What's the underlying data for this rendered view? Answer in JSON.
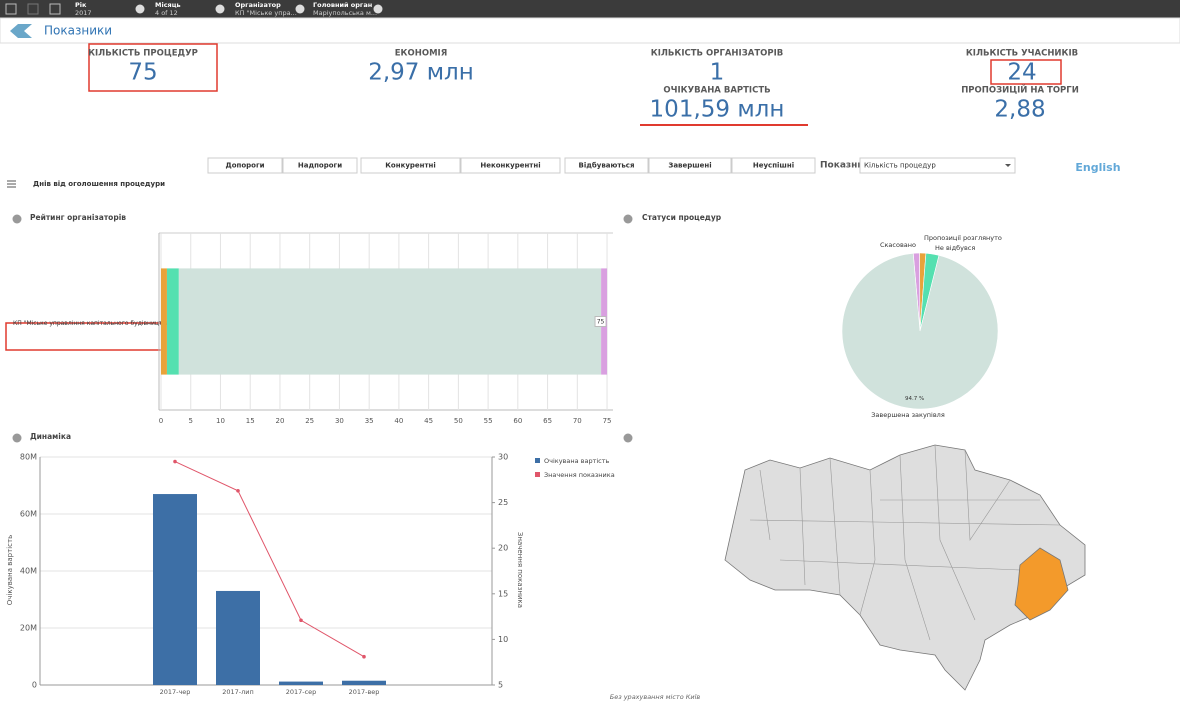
{
  "selections": [
    {
      "field": "Рік",
      "value": "2017"
    },
    {
      "field": "Місяць",
      "value": "4 of 12"
    },
    {
      "field": "Організатор",
      "value": "КП \"Міське упра..."
    },
    {
      "field": "Головний орган",
      "value": "Маріупольська м..."
    }
  ],
  "header": {
    "title": "Показники"
  },
  "kpis": [
    {
      "label": "КІЛЬКІСТЬ ПРОЦЕДУР",
      "value": "75"
    },
    {
      "label": "ЕКОНОМІЯ",
      "value": "2,97 млн"
    },
    {
      "label": "КІЛЬКІСТЬ ОРГАНІЗАТОРІВ",
      "value": "1"
    },
    {
      "label": "ОЧІКУВАНА ВАРТІСТЬ",
      "value": "101,59 млн"
    },
    {
      "label": "КІЛЬКІСТЬ УЧАСНИКІВ",
      "value": "24"
    },
    {
      "label": "ПРОПОЗИЦІЙ НА ТОРГИ",
      "value": "2,88"
    }
  ],
  "filters": {
    "buttons": [
      "Допороги",
      "Надпороги",
      "Конкурентні",
      "Неконкурентні",
      "Відбуваються",
      "Завершені",
      "Неуспішні"
    ],
    "indicator_label": "Показник",
    "indicator_value": "Кількість процедур",
    "language": "English",
    "menu_label": "Днів від оголошення процедури"
  },
  "chart_data": [
    {
      "type": "bar",
      "orientation": "horizontal",
      "stacked": true,
      "title": "Рейтинг організаторів",
      "categories": [
        "КП \"Міське управління капітального будівництва\""
      ],
      "series": [
        {
          "color": "#e8a33a",
          "values": [
            1
          ]
        },
        {
          "color": "#55e0b0",
          "values": [
            2
          ]
        },
        {
          "color": "#d0e2dc",
          "values": [
            71
          ]
        },
        {
          "color": "#d9a0e0",
          "values": [
            1
          ]
        }
      ],
      "total_labels": [
        "75"
      ],
      "xlim": [
        0,
        76
      ],
      "xticks": [
        0,
        5,
        10,
        15,
        20,
        25,
        30,
        35,
        40,
        45,
        50,
        55,
        60,
        65,
        70,
        75
      ],
      "grid": true
    },
    {
      "type": "pie",
      "title": "Статуси процедур",
      "categories": [
        "Скасовано",
        "Пропозиції розглянуто",
        "Не відбувся",
        "Завершена закупівля"
      ],
      "colors": [
        "#d9a0e0",
        "#e8a33a",
        "#55e0b0",
        "#d0e2dc"
      ],
      "values": [
        1.3,
        1.3,
        2.7,
        94.7
      ],
      "value_labels": [
        null,
        null,
        null,
        "94.7 %"
      ]
    },
    {
      "type": "combo",
      "title": "Динаміка",
      "categories": [
        "2017-чер",
        "2017-лип",
        "2017-сер",
        "2017-вер"
      ],
      "y_label": "Очікувана вартість",
      "y2_label": "Значення показника",
      "ylim": [
        0,
        80000000
      ],
      "yticks": [
        0,
        {
          "value": 20000000,
          "label": "20M"
        },
        {
          "value": 40000000,
          "label": "40M"
        },
        {
          "value": 60000000,
          "label": "60M"
        },
        {
          "value": 80000000,
          "label": "80M"
        }
      ],
      "y2lim": [
        5,
        30
      ],
      "y2ticks": [
        5,
        10,
        15,
        20,
        25,
        30
      ],
      "series": [
        {
          "name": "Очікувана вартість",
          "type": "bar",
          "color": "#3d6fa6",
          "values": [
            67000000,
            33000000,
            1200000,
            1500000
          ]
        },
        {
          "name": "Значення показника",
          "type": "line",
          "axis": "y2",
          "color": "#e0566a",
          "values": [
            29.5,
            26.3,
            12.1,
            8.1
          ]
        }
      ],
      "legend": "right",
      "grid": true
    }
  ],
  "map": {
    "note": "Без урахування місто Київ"
  }
}
